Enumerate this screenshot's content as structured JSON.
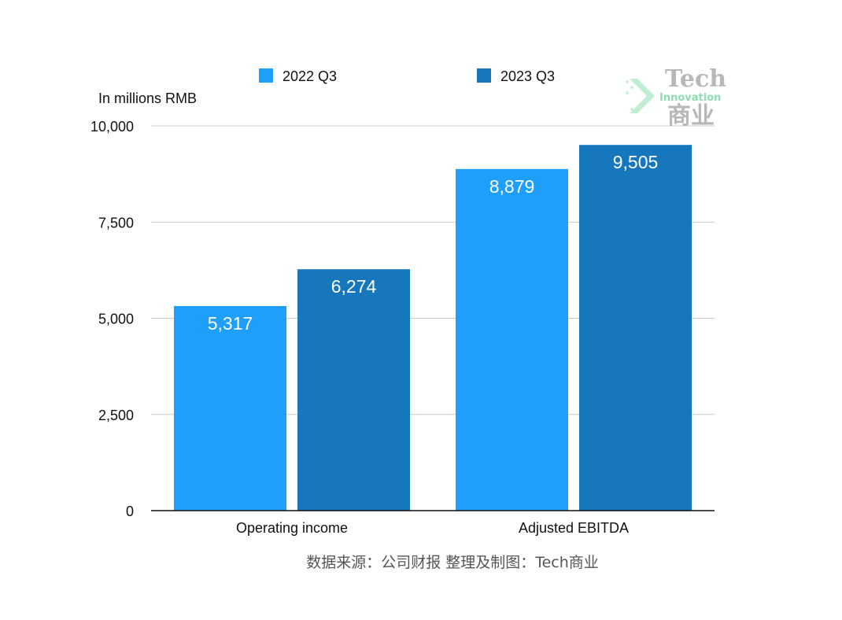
{
  "chart_data": {
    "type": "bar",
    "categories": [
      "Operating income",
      "Adjusted EBITDA"
    ],
    "series": [
      {
        "name": "2022 Q3",
        "values": [
          5317,
          8879
        ],
        "labels": [
          "5,317",
          "8,879"
        ],
        "color": "#1e9ffc"
      },
      {
        "name": "2023 Q3",
        "values": [
          6274,
          9505
        ],
        "labels": [
          "6,274",
          "9,505"
        ],
        "color": "#1677bd"
      }
    ],
    "ylabel": "In millions RMB",
    "ylim": [
      0,
      10000
    ],
    "yticks": [
      0,
      2500,
      5000,
      7500,
      10000
    ],
    "ytick_labels": [
      "0",
      "2,500",
      "5,000",
      "7,500",
      "10,000"
    ],
    "grid": true,
    "legend_position": "top",
    "source_note": "数据来源：公司财报 整理及制图：Tech商业"
  },
  "watermark": {
    "line1": "Tech",
    "line2": "Innovation",
    "line3": "商业"
  },
  "colors": {
    "grid": "#c8c8c8",
    "axis": "#111111"
  }
}
